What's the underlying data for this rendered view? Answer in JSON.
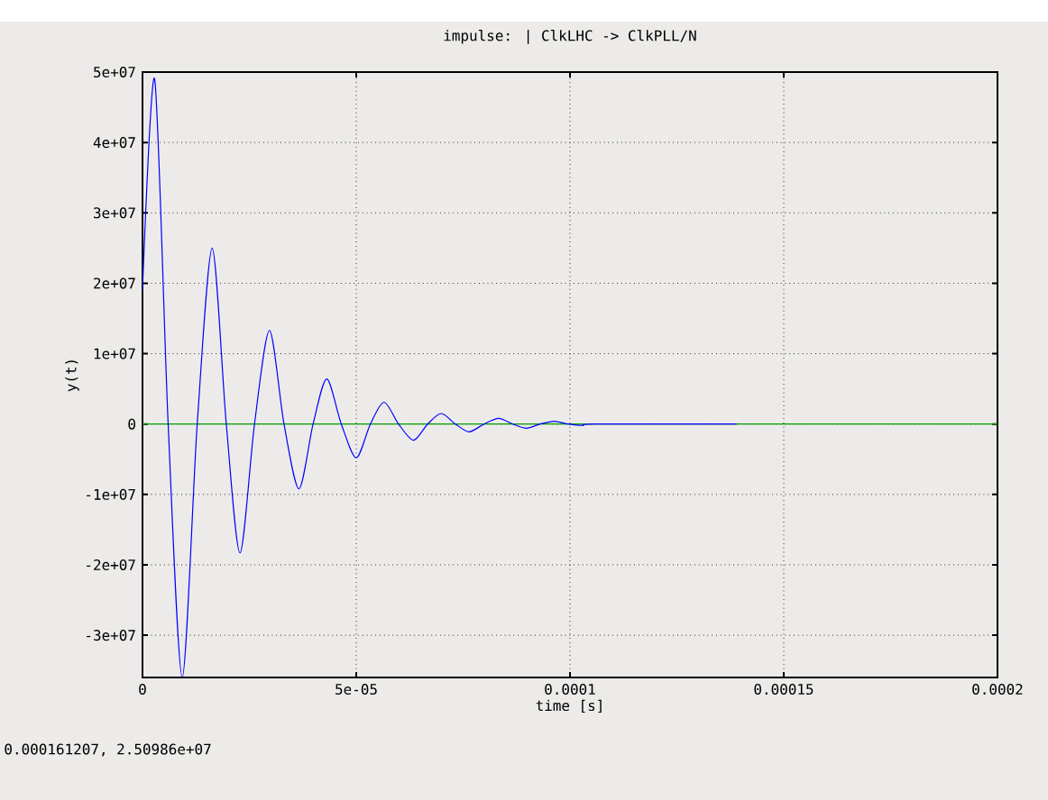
{
  "chart_data": {
    "type": "line",
    "title": "impulse: | ClkLHC -> ClkPLL/N",
    "xlabel": "time [s]",
    "ylabel": "y(t)",
    "annotations": [
      "0.000161207,  2.50986e+07"
    ],
    "series": [
      {
        "color": "#0000ff",
        "x": [
          0,
          2.85e-06,
          6e-06,
          9.3e-06,
          1.28e-05,
          1.63e-05,
          1.96e-05,
          2.28e-05,
          2.62e-05,
          2.97e-05,
          3.31e-05,
          3.66e-05,
          3.99e-05,
          4.31e-05,
          4.65e-05,
          5e-05,
          5.33e-05,
          5.65e-05,
          5.99e-05,
          6.34e-05,
          6.67e-05,
          6.99e-05,
          7.32e-05,
          7.64e-05,
          7.99e-05,
          8.33e-05,
          8.66e-05,
          8.98e-05,
          9.3e-05,
          9.63e-05,
          9.96e-05,
          0.000103,
          0.000106,
          0.000139
        ],
        "values": [
          19000000.0,
          49000000.0,
          0,
          -36000000.0,
          0,
          25000000.0,
          0,
          -18300000.0,
          0,
          13300000.0,
          0,
          -9200000.0,
          0,
          6400000.0,
          0,
          -4800000.0,
          0,
          3100000.0,
          0,
          -2300000.0,
          0,
          1500000.0,
          0,
          -1100000.0,
          0,
          800000.0,
          0,
          -600000.0,
          0,
          400000.0,
          0,
          -200000.0,
          0,
          0
        ]
      }
    ],
    "ref_lines": [
      {
        "axis": "y",
        "value": 0,
        "color": "#00a000"
      }
    ],
    "xlim": [
      0,
      0.0002
    ],
    "ylim": [
      -36000000.0,
      50000000.0
    ],
    "xticks": [
      0,
      {
        "value": 5e-05,
        "label": "5e-05"
      },
      {
        "value": 0.0001,
        "label": "0.0001"
      },
      {
        "value": 0.00015,
        "label": "0.00015"
      },
      {
        "value": 0.0002,
        "label": "0.0002"
      }
    ],
    "yticks": [
      {
        "value": -30000000.0,
        "label": "-3e+07"
      },
      {
        "value": -20000000.0,
        "label": "-2e+07"
      },
      {
        "value": -10000000.0,
        "label": "-1e+07"
      },
      0,
      {
        "value": 10000000.0,
        "label": "1e+07"
      },
      {
        "value": 20000000.0,
        "label": "2e+07"
      },
      {
        "value": 30000000.0,
        "label": "3e+07"
      },
      {
        "value": 40000000.0,
        "label": "4e+07"
      },
      {
        "value": 50000000.0,
        "label": "5e+07"
      }
    ],
    "grid": true,
    "marker": "none",
    "line_style": "solid"
  }
}
